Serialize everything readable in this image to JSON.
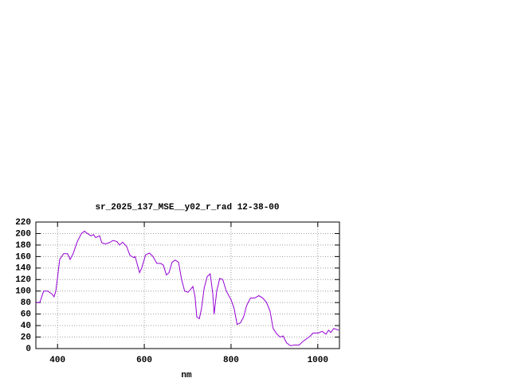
{
  "chart_data": {
    "type": "line",
    "title": "sr_2025_137_MSE__y02_r_rad 12-38-00",
    "x_label": "nm",
    "x": [
      350,
      359,
      368,
      377,
      387,
      392,
      396,
      401,
      405,
      414,
      423,
      429,
      436,
      445,
      455,
      462,
      469,
      477,
      483,
      488,
      497,
      502,
      510,
      519,
      528,
      537,
      543,
      550,
      559,
      567,
      576,
      579,
      589,
      594,
      603,
      612,
      620,
      629,
      638,
      644,
      651,
      657,
      664,
      671,
      679,
      686,
      693,
      701,
      708,
      712,
      717,
      721,
      727,
      732,
      738,
      745,
      752,
      758,
      761,
      767,
      774,
      781,
      789,
      800,
      807,
      814,
      822,
      829,
      836,
      845,
      855,
      864,
      873,
      882,
      890,
      897,
      906,
      913,
      920,
      928,
      937,
      946,
      957,
      965,
      976,
      983,
      989,
      1001,
      1010,
      1019,
      1025,
      1030,
      1037,
      1048
    ],
    "series": [
      {
        "name": "sr_2025_137_MSE__y02_r_rad 12-38-00",
        "color": "#9400d3",
        "values": [
          80,
          80,
          100,
          100,
          95,
          90,
          100,
          130,
          155,
          165,
          165,
          155,
          165,
          185,
          200,
          204,
          200,
          196,
          198,
          193,
          196,
          184,
          182,
          184,
          188,
          186,
          180,
          185,
          178,
          162,
          158,
          160,
          132,
          140,
          163,
          166,
          160,
          148,
          148,
          145,
          128,
          132,
          150,
          154,
          150,
          120,
          100,
          98,
          104,
          108,
          90,
          55,
          52,
          70,
          105,
          125,
          130,
          95,
          60,
          100,
          122,
          120,
          100,
          85,
          70,
          42,
          45,
          55,
          75,
          88,
          88,
          92,
          88,
          80,
          65,
          35,
          25,
          20,
          22,
          10,
          5,
          6,
          6,
          12,
          18,
          22,
          27,
          27,
          30,
          25,
          32,
          28,
          35,
          32
        ]
      }
    ],
    "xlim": [
      350,
      1050
    ],
    "ylim": [
      0,
      220
    ],
    "xticks": [
      400,
      600,
      800,
      1000
    ],
    "yticks": [
      0,
      20,
      40,
      60,
      80,
      100,
      120,
      140,
      160,
      180,
      200,
      220
    ],
    "grid": true
  }
}
